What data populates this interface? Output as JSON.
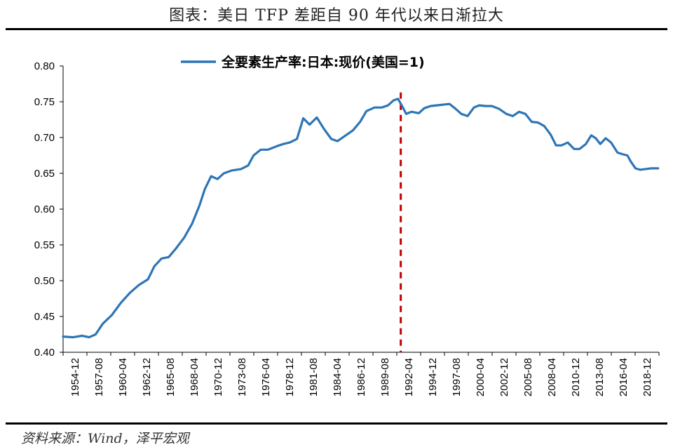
{
  "page": {
    "title": "图表：美日 TFP 差距自 90 年代以来日渐拉大",
    "source": "资料来源：Wind，泽平宏观"
  },
  "colors": {
    "series": "#2E75B6",
    "marker": "#C00000"
  },
  "chart_data": {
    "type": "line",
    "legend": "top-center",
    "grid": false,
    "ylim": [
      0.4,
      0.8
    ],
    "yticks": [
      "0.80",
      "0.75",
      "0.70",
      "0.65",
      "0.60",
      "0.55",
      "0.50",
      "0.45",
      "0.40"
    ],
    "xticks": [
      "1954-12",
      "1957-08",
      "1960-04",
      "1962-12",
      "1965-08",
      "1968-04",
      "1970-12",
      "1973-08",
      "1976-04",
      "1978-12",
      "1981-08",
      "1984-04",
      "1986-12",
      "1989-08",
      "1992-04",
      "1994-12",
      "1997-08",
      "2000-04",
      "2002-12",
      "2005-08",
      "2008-04",
      "2010-12",
      "2013-08",
      "2016-04",
      "2018-12"
    ],
    "xlim": [
      1954.9,
      2020.9
    ],
    "vline": {
      "x": 1992.3,
      "style": "dashed"
    },
    "series": [
      {
        "name": "全要素生产率:日本:现价(美国=1)",
        "x": [
          1954.9,
          1956.0,
          1957.0,
          1957.8,
          1958.5,
          1959.3,
          1960.3,
          1961.3,
          1962.3,
          1963.3,
          1964.3,
          1965.0,
          1965.8,
          1966.6,
          1967.4,
          1968.3,
          1969.2,
          1970.0,
          1970.6,
          1971.3,
          1972.0,
          1972.7,
          1973.6,
          1974.6,
          1975.4,
          1976.0,
          1976.8,
          1977.6,
          1978.6,
          1979.3,
          1980.0,
          1980.8,
          1981.5,
          1982.2,
          1983.0,
          1983.8,
          1984.6,
          1985.3,
          1986.2,
          1987.0,
          1987.8,
          1988.5,
          1989.4,
          1990.2,
          1990.9,
          1991.5,
          1992.0,
          1992.4,
          1992.9,
          1993.5,
          1994.3,
          1994.9,
          1995.6,
          1996.3,
          1997.0,
          1997.7,
          1998.3,
          1999.0,
          1999.7,
          2000.4,
          2001.0,
          2001.7,
          2002.4,
          2003.2,
          2004.0,
          2004.7,
          2005.4,
          2006.1,
          2006.8,
          2007.5,
          2008.2,
          2008.9,
          2009.5,
          2010.1,
          2010.8,
          2011.5,
          2012.1,
          2012.8,
          2013.4,
          2013.9,
          2014.4,
          2015.0,
          2015.6,
          2016.3,
          2016.8,
          2017.4,
          2017.8,
          2018.3,
          2018.8,
          2019.4,
          2020.0,
          2020.8
        ],
        "values": [
          0.422,
          0.421,
          0.423,
          0.421,
          0.425,
          0.44,
          0.452,
          0.469,
          0.483,
          0.494,
          0.502,
          0.52,
          0.531,
          0.533,
          0.545,
          0.56,
          0.58,
          0.605,
          0.628,
          0.646,
          0.642,
          0.65,
          0.654,
          0.656,
          0.661,
          0.675,
          0.683,
          0.683,
          0.688,
          0.691,
          0.693,
          0.698,
          0.727,
          0.718,
          0.728,
          0.712,
          0.698,
          0.695,
          0.703,
          0.71,
          0.722,
          0.737,
          0.742,
          0.742,
          0.745,
          0.752,
          0.754,
          0.745,
          0.733,
          0.736,
          0.734,
          0.741,
          0.744,
          0.745,
          0.746,
          0.747,
          0.741,
          0.733,
          0.73,
          0.742,
          0.745,
          0.744,
          0.744,
          0.74,
          0.733,
          0.73,
          0.736,
          0.733,
          0.722,
          0.721,
          0.716,
          0.704,
          0.689,
          0.689,
          0.693,
          0.684,
          0.684,
          0.691,
          0.703,
          0.699,
          0.691,
          0.699,
          0.693,
          0.679,
          0.677,
          0.675,
          0.666,
          0.657,
          0.655,
          0.656,
          0.657,
          0.657
        ]
      }
    ]
  }
}
